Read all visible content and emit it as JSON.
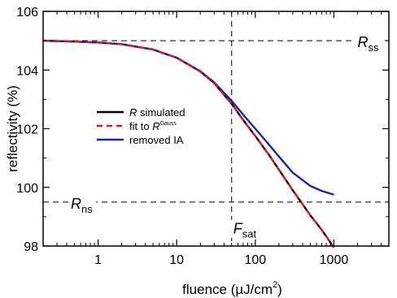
{
  "chart_data": {
    "type": "line",
    "title": "",
    "xlabel": {
      "text": "fluence (µJ/cm",
      "superscript": "2",
      "suffix": ")"
    },
    "ylabel": "reflectivity (%)",
    "xscale": "log",
    "xlim": [
      0.2,
      5000
    ],
    "ylim": [
      98,
      106
    ],
    "xticks": [
      1,
      10,
      100,
      1000
    ],
    "xtick_labels": [
      "1",
      "10",
      "100",
      "1000"
    ],
    "yticks": [
      98,
      100,
      102,
      104,
      106
    ],
    "ytick_labels": [
      "98",
      "100",
      "102",
      "104",
      "106"
    ],
    "grid": false,
    "legend_position": "center-left",
    "series": [
      {
        "name": "R simulated",
        "name_italic": "R",
        "name_rest": " simulated",
        "color": "#000000",
        "dash": "solid",
        "x": [
          0.2,
          0.5,
          1,
          2,
          5,
          10,
          20,
          30,
          50,
          70,
          100,
          150,
          200,
          300,
          500,
          700,
          1000
        ],
        "y": [
          105.0,
          104.97,
          104.94,
          104.88,
          104.7,
          104.42,
          103.95,
          103.55,
          102.85,
          102.3,
          101.75,
          101.1,
          100.6,
          99.9,
          99.05,
          98.55,
          97.95
        ]
      },
      {
        "name": "fit to R^Gauss",
        "name_prefix": "fit to ",
        "name_italic": "R",
        "name_sup": "Gauss",
        "color": "#e8141b",
        "dash": "8,5",
        "x": [
          0.2,
          0.5,
          1,
          2,
          5,
          10,
          20,
          30,
          50,
          70,
          100,
          150,
          200,
          300,
          500,
          700,
          1000
        ],
        "y": [
          105.0,
          104.97,
          104.94,
          104.88,
          104.7,
          104.42,
          103.95,
          103.55,
          102.85,
          102.3,
          101.75,
          101.1,
          100.6,
          99.9,
          99.05,
          98.55,
          97.95
        ]
      },
      {
        "name": "removed IA",
        "color": "#1424b4",
        "dash": "solid",
        "x": [
          0.2,
          0.5,
          1,
          2,
          5,
          10,
          20,
          30,
          50,
          70,
          100,
          150,
          200,
          300,
          500,
          700,
          1000
        ],
        "y": [
          105.0,
          104.97,
          104.94,
          104.88,
          104.7,
          104.42,
          103.96,
          103.58,
          102.95,
          102.48,
          102.0,
          101.45,
          101.05,
          100.5,
          100.05,
          99.88,
          99.75
        ]
      }
    ],
    "reference_lines": [
      {
        "orientation": "horizontal",
        "value": 105,
        "label_main": "R",
        "label_sub": "ss",
        "label_x": 2000
      },
      {
        "orientation": "horizontal",
        "value": 99.5,
        "label_main": "R",
        "label_sub": "ns",
        "label_x": 0.45
      },
      {
        "orientation": "vertical",
        "value": 50,
        "label_main": "F",
        "label_sub": "sat",
        "label_y": 98.7
      }
    ]
  }
}
